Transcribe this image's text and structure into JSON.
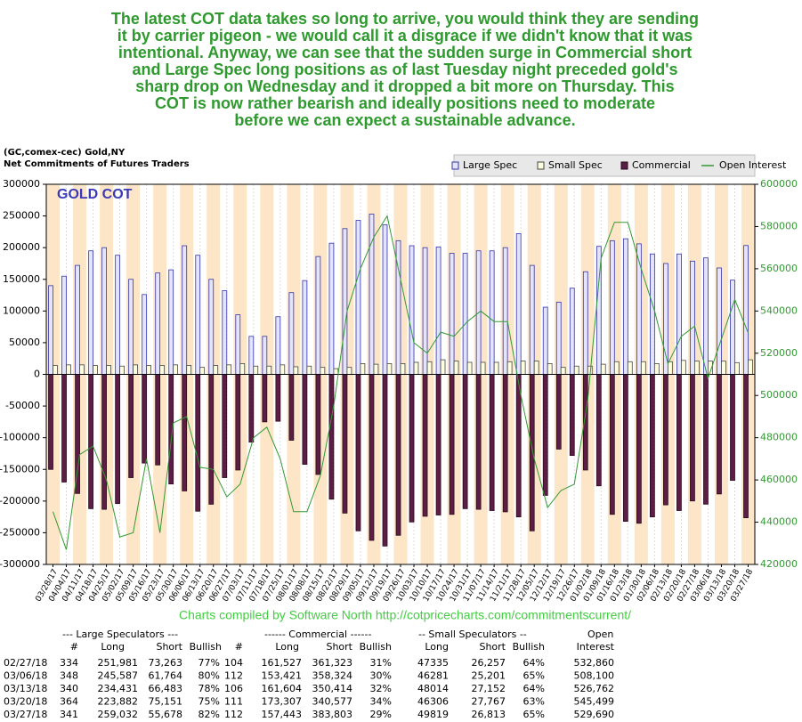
{
  "commentary": [
    "The latest COT data takes so long to arrive, you would think they are sending",
    "it by carrier pigeon - we would call it a disgrace if we didn't know that it was",
    "intentional. Anyway, we can see that the sudden surge in Commercial short",
    "and Large Spec long positions as of last Tuesday night preceded gold's",
    "sharp drop on Wednesday and it dropped a bit more on Thursday. This",
    "COT is now rather bearish and ideally positions need to moderate",
    "before we can expect a sustainable advance."
  ],
  "chart_data": {
    "type": "bar",
    "source": "(GC,comex-cec) Gold,NY",
    "title": "Net Commitments of Futures Traders",
    "annotation": "GOLD COT",
    "categories": [
      "03/28/17",
      "04/04/17",
      "04/11/17",
      "04/18/17",
      "04/25/17",
      "05/02/17",
      "05/09/17",
      "05/16/17",
      "05/23/17",
      "05/30/17",
      "06/06/17",
      "06/13/17",
      "06/20/17",
      "06/27/17",
      "07/03/17",
      "07/11/17",
      "07/18/17",
      "07/25/17",
      "08/01/17",
      "08/08/17",
      "08/15/17",
      "08/22/17",
      "08/29/17",
      "09/05/17",
      "09/12/17",
      "09/19/17",
      "09/26/17",
      "10/03/17",
      "10/10/17",
      "10/17/17",
      "10/24/17",
      "10/31/17",
      "11/07/17",
      "11/14/17",
      "11/21/17",
      "11/28/17",
      "12/05/17",
      "12/12/17",
      "12/19/17",
      "12/26/17",
      "01/02/18",
      "01/09/18",
      "01/16/18",
      "01/23/18",
      "01/30/18",
      "02/06/18",
      "02/13/18",
      "02/20/18",
      "02/27/18",
      "03/06/18",
      "03/13/18",
      "03/20/18",
      "03/27/18"
    ],
    "series": [
      {
        "name": "Large Spec",
        "color": "#e4e4ff",
        "stroke": "#3333aa",
        "values": [
          140000,
          155000,
          172000,
          195000,
          200000,
          188000,
          150000,
          126000,
          160000,
          165000,
          203000,
          188000,
          150000,
          132000,
          94000,
          60000,
          60000,
          91000,
          129000,
          148000,
          186000,
          207000,
          230000,
          243000,
          253000,
          236000,
          211000,
          203000,
          200000,
          201000,
          191000,
          191000,
          195000,
          195000,
          200000,
          222000,
          172000,
          106000,
          114000,
          136000,
          162000,
          202000,
          211000,
          214000,
          206000,
          190000,
          175000,
          190000,
          178718,
          183823,
          167948,
          148731,
          203354
        ]
      },
      {
        "name": "Small Spec",
        "color": "#ffffe0",
        "stroke": "#444444",
        "values": [
          14000,
          15000,
          15000,
          14000,
          14000,
          13000,
          15000,
          14000,
          14000,
          15000,
          14000,
          11000,
          14000,
          15000,
          17000,
          13000,
          13000,
          15000,
          12000,
          13000,
          11000,
          9000,
          11000,
          17000,
          16000,
          17000,
          17000,
          19000,
          20000,
          23000,
          21000,
          19000,
          19000,
          19000,
          20000,
          21000,
          21000,
          17000,
          11000,
          13000,
          13000,
          16000,
          20000,
          20000,
          20000,
          17000,
          20000,
          22000,
          21078,
          21080,
          20862,
          18539,
          23006
        ]
      },
      {
        "name": "Commercial",
        "color": "#5c1e44",
        "stroke": "#2a0a1e",
        "values": [
          -150000,
          -170000,
          -188000,
          -212000,
          -213000,
          -204000,
          -163000,
          -140000,
          -143000,
          -173000,
          -184000,
          -216000,
          -205000,
          -163000,
          -151000,
          -107000,
          -75000,
          -74000,
          -104000,
          -142000,
          -158000,
          -197000,
          -219000,
          -247000,
          -262000,
          -271000,
          -254000,
          -233000,
          -224000,
          -222000,
          -221000,
          -212000,
          -213000,
          -215000,
          -217000,
          -225000,
          -247000,
          -191000,
          -118000,
          -128000,
          -151000,
          -176000,
          -221000,
          -232000,
          -235000,
          -225000,
          -206000,
          -215000,
          -199796,
          -204903,
          -188810,
          -167270,
          -226360
        ]
      },
      {
        "name": "Open Interest",
        "color": "#339933",
        "type": "line",
        "axis": "y2",
        "values": [
          445000,
          427000,
          472000,
          476000,
          460000,
          433000,
          435000,
          470000,
          435000,
          487000,
          490000,
          466000,
          465000,
          452000,
          458000,
          480000,
          485000,
          470000,
          445000,
          445000,
          462000,
          495000,
          540000,
          560000,
          575000,
          585000,
          555000,
          525000,
          520000,
          530000,
          528000,
          535000,
          540000,
          535000,
          535000,
          500000,
          470000,
          447000,
          455000,
          458000,
          498000,
          565000,
          582000,
          582000,
          560000,
          540000,
          515000,
          528000,
          532860,
          508100,
          526762,
          545499,
          529690
        ]
      }
    ],
    "ylim": [
      -300000,
      300000
    ],
    "yticks": [
      -300000,
      -250000,
      -200000,
      -150000,
      -100000,
      -50000,
      0,
      50000,
      100000,
      150000,
      200000,
      250000,
      300000
    ],
    "y2lim": [
      420000,
      600000
    ],
    "y2ticks": [
      420000,
      440000,
      460000,
      480000,
      500000,
      520000,
      540000,
      560000,
      580000,
      600000
    ],
    "legend": "top-right"
  },
  "credit": "Charts compiled by Software North  http://cotpricecharts.com/commitmentscurrent/",
  "table": {
    "header_groups": [
      "--- Large Speculators ---",
      "------ Commercial ------",
      "-- Small Speculators --",
      "Open"
    ],
    "columns": [
      "#",
      "Long",
      "Short",
      "Bullish",
      "#",
      "Long",
      "Short",
      "Bullish",
      "Long",
      "Short",
      "Bullish",
      "Interest"
    ],
    "rows": [
      [
        "02/27/18",
        "334",
        "251,981",
        "73,263",
        "77%",
        "104",
        "161,527",
        "361,323",
        "31%",
        "47335",
        "26,257",
        "64%",
        "532,860"
      ],
      [
        "03/06/18",
        "348",
        "245,587",
        "61,764",
        "80%",
        "112",
        "153,421",
        "358,324",
        "30%",
        "46281",
        "25,201",
        "65%",
        "508,100"
      ],
      [
        "03/13/18",
        "340",
        "234,431",
        "66,483",
        "78%",
        "106",
        "161,604",
        "350,414",
        "32%",
        "48014",
        "27,152",
        "64%",
        "526,762"
      ],
      [
        "03/20/18",
        "364",
        "223,882",
        "75,151",
        "75%",
        "111",
        "173,307",
        "340,577",
        "34%",
        "46306",
        "27,767",
        "63%",
        "545,499"
      ],
      [
        "03/27/18",
        "341",
        "259,032",
        "55,678",
        "82%",
        "112",
        "157,443",
        "383,803",
        "29%",
        "49819",
        "26,813",
        "65%",
        "529,690"
      ]
    ]
  }
}
